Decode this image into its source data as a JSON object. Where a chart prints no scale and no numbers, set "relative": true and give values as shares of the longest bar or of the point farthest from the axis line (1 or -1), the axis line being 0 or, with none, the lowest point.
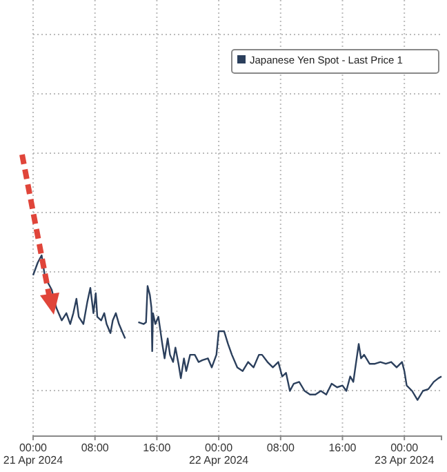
{
  "chart_data": {
    "type": "line",
    "relative": true,
    "grid": true,
    "legend": "top right",
    "marker": "none",
    "line_style": "solid",
    "xlim": [
      "2024-04-21T00:00",
      "2024-04-23T04:48"
    ],
    "xticks": [
      {
        "value": "2024-04-21T00:00",
        "label": "00:00\n21 Apr 2024"
      },
      {
        "value": "2024-04-21T08:00",
        "label": "08:00"
      },
      {
        "value": "2024-04-21T16:00",
        "label": "16:00"
      },
      {
        "value": "2024-04-22T00:00",
        "label": "00:00\n22 Apr 2024"
      },
      {
        "value": "2024-04-22T08:00",
        "label": "08:00"
      },
      {
        "value": "2024-04-22T16:00",
        "label": "16:00"
      },
      {
        "value": "2024-04-23T00:00",
        "label": "00:00\n23 Apr 2024"
      }
    ],
    "series": [
      {
        "name": "Japanese Yen Spot - Last Price 1",
        "color": "#2b3f5c",
        "x": [
          "2024-04-21T00:00",
          "2024-04-21T00:36",
          "2024-04-21T01:06",
          "2024-04-21T01:30",
          "2024-04-21T01:54",
          "2024-04-21T02:24",
          "2024-04-21T03:00",
          "2024-04-21T03:42",
          "2024-04-21T04:18",
          "2024-04-21T04:48",
          "2024-04-21T05:12",
          "2024-04-21T05:36",
          "2024-04-21T05:54",
          "2024-04-21T06:30",
          "2024-04-21T07:00",
          "2024-04-21T07:24",
          "2024-04-21T07:48",
          "2024-04-21T08:06",
          "2024-04-21T08:18",
          "2024-04-21T08:48",
          "2024-04-21T09:12",
          "2024-04-21T09:30",
          "2024-04-21T10:00",
          "2024-04-21T10:18",
          "2024-04-21T10:42",
          "2024-04-21T11:06",
          "2024-04-21T11:36",
          "2024-04-21T11:54",
          "2024-04-21T12:30",
          "2024-04-21T13:36",
          "2024-04-21T14:18",
          "2024-04-21T14:36",
          "2024-04-21T14:48",
          "2024-04-21T15:06",
          "2024-04-21T15:18",
          "2024-04-21T15:24",
          "2024-04-21T15:30",
          "2024-04-21T15:48",
          "2024-04-21T16:12",
          "2024-04-21T16:42",
          "2024-04-21T17:00",
          "2024-04-21T17:24",
          "2024-04-21T17:42",
          "2024-04-21T18:06",
          "2024-04-21T18:24",
          "2024-04-21T18:48",
          "2024-04-21T19:06",
          "2024-04-21T19:30",
          "2024-04-21T19:48",
          "2024-04-21T20:18",
          "2024-04-21T20:54",
          "2024-04-21T21:24",
          "2024-04-21T21:54",
          "2024-04-21T22:36",
          "2024-04-21T23:06",
          "2024-04-21T23:42",
          "2024-04-22T00:00",
          "2024-04-22T00:42",
          "2024-04-22T01:12",
          "2024-04-22T01:42",
          "2024-04-22T02:24",
          "2024-04-22T03:06",
          "2024-04-22T03:48",
          "2024-04-22T04:30",
          "2024-04-22T05:12",
          "2024-04-22T05:36",
          "2024-04-22T06:18",
          "2024-04-22T07:00",
          "2024-04-22T07:42",
          "2024-04-22T08:12",
          "2024-04-22T08:42",
          "2024-04-22T09:12",
          "2024-04-22T09:42",
          "2024-04-22T10:24",
          "2024-04-22T11:06",
          "2024-04-22T11:48",
          "2024-04-22T12:30",
          "2024-04-22T13:12",
          "2024-04-22T13:54",
          "2024-04-22T14:36",
          "2024-04-22T15:18",
          "2024-04-22T16:00",
          "2024-04-22T16:30",
          "2024-04-22T17:00",
          "2024-04-22T17:24",
          "2024-04-22T18:06",
          "2024-04-22T18:24",
          "2024-04-22T18:48",
          "2024-04-22T19:30",
          "2024-04-22T20:12",
          "2024-04-22T20:54",
          "2024-04-22T21:36",
          "2024-04-22T22:18",
          "2024-04-22T23:00",
          "2024-04-22T23:42",
          "2024-04-23T00:00",
          "2024-04-23T00:18",
          "2024-04-23T01:00",
          "2024-04-23T01:42",
          "2024-04-23T02:24",
          "2024-04-23T03:06",
          "2024-04-23T03:48",
          "2024-04-23T04:24",
          "2024-04-23T04:48"
        ],
        "values": [
          0.89,
          0.96,
          1.0,
          0.89,
          0.85,
          0.81,
          0.71,
          0.64,
          0.68,
          0.62,
          0.68,
          0.76,
          0.66,
          0.62,
          0.74,
          0.82,
          0.68,
          0.79,
          0.66,
          0.64,
          0.68,
          0.62,
          0.57,
          0.64,
          0.68,
          0.62,
          0.57,
          0.54,
          null,
          0.63,
          0.62,
          0.63,
          0.83,
          0.78,
          0.71,
          0.47,
          0.68,
          0.62,
          0.66,
          0.51,
          0.43,
          0.54,
          0.45,
          0.41,
          0.49,
          0.4,
          0.32,
          0.43,
          0.36,
          0.45,
          0.45,
          0.41,
          0.42,
          0.43,
          0.38,
          0.45,
          0.58,
          0.58,
          0.51,
          0.45,
          0.38,
          0.36,
          0.41,
          0.38,
          0.45,
          0.45,
          0.41,
          0.38,
          0.41,
          0.33,
          0.35,
          0.25,
          0.29,
          0.3,
          0.25,
          0.23,
          0.23,
          0.25,
          0.23,
          0.29,
          0.27,
          0.28,
          0.25,
          0.33,
          0.3,
          0.51,
          0.43,
          0.45,
          0.4,
          0.4,
          0.41,
          0.4,
          0.41,
          0.38,
          0.41,
          0.36,
          0.28,
          0.25,
          0.2,
          0.25,
          0.26,
          0.3,
          0.32,
          0.33
        ]
      }
    ]
  }
}
